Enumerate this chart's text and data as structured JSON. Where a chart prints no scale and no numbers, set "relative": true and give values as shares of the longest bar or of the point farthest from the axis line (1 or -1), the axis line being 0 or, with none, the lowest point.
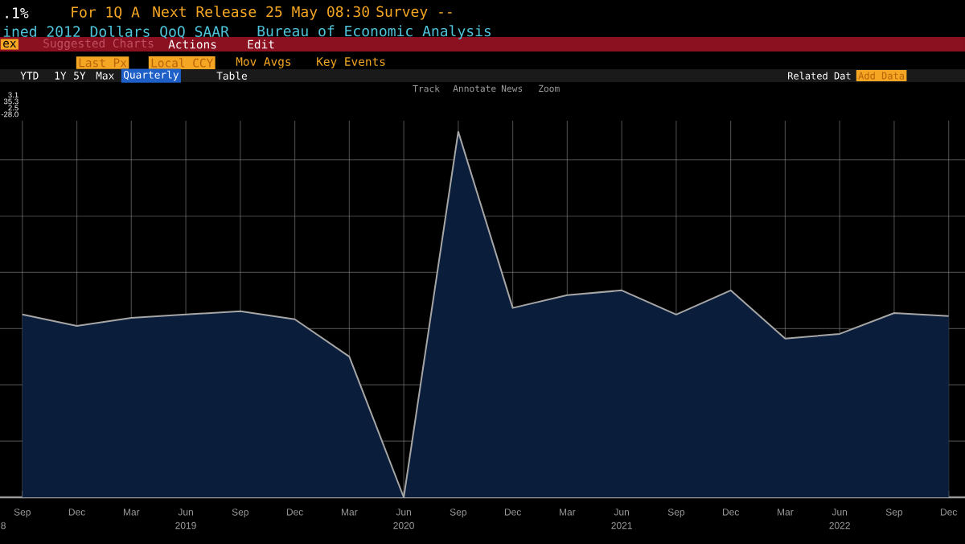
{
  "chart_data": {
    "type": "area",
    "relative": true,
    "grid": true,
    "categories": [
      "Sep",
      "Dec",
      "Mar",
      "Jun",
      "Sep",
      "Dec",
      "Mar",
      "Jun",
      "Sep",
      "Dec",
      "Mar",
      "Jun",
      "Sep",
      "Dec",
      "Mar",
      "Jun",
      "Sep",
      "Dec"
    ],
    "series": [
      {
        "color": "#0a1e3c",
        "values": [
          0.5,
          0.469,
          0.491,
          0.5,
          0.509,
          0.487,
          0.385,
          0,
          1,
          0.518,
          0.553,
          0.566,
          0.5,
          0.566,
          0.434,
          0.447,
          0.504,
          0.496
        ]
      }
    ],
    "annotations": [
      ".1%",
      "For 1Q A",
      "Next Release 25 May 08:30",
      "Survey --",
      "ined 2012 Dollars QoQ SAAR",
      "Bureau of Economic Analysis",
      "ex",
      "Suggested Charts",
      "Actions",
      "Edit",
      "Last Px",
      "Local CCY",
      "Mov Avgs",
      "Key Events",
      "Related Dat",
      "Add Data",
      "YTD",
      "1Y",
      "5Y",
      "Max",
      "Quarterly",
      "Table",
      "Track",
      "Annotate",
      "News",
      "Zoom",
      "3.1",
      "35.3",
      "2.5",
      "-28.0",
      "8",
      "2019",
      "2020",
      "2021",
      "2022"
    ]
  }
}
